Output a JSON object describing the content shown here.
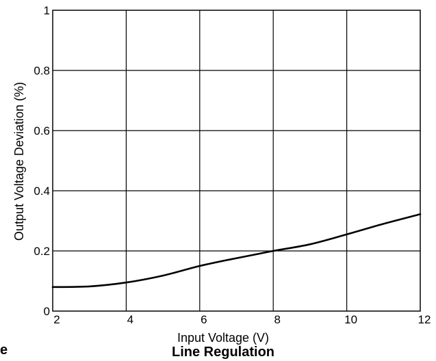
{
  "chart_data": {
    "type": "line",
    "title": "Line Regulation",
    "xlabel": "Input Voltage (V)",
    "ylabel": "Output Voltage Deviation (%)",
    "xlim": [
      2,
      12
    ],
    "ylim": [
      0,
      1
    ],
    "xticks": [
      "2",
      "4",
      "6",
      "8",
      "10",
      "12"
    ],
    "yticks": [
      "0",
      "0.2",
      "0.4",
      "0.6",
      "0.8",
      "1"
    ],
    "grid": true,
    "series": [
      {
        "color": "#000000",
        "x": [
          2,
          3,
          4,
          5,
          6,
          7,
          8,
          9,
          10,
          11,
          12
        ],
        "y": [
          0.08,
          0.082,
          0.095,
          0.118,
          0.15,
          0.176,
          0.2,
          0.222,
          0.255,
          0.29,
          0.322
        ]
      }
    ]
  },
  "edge_fragment": "e"
}
